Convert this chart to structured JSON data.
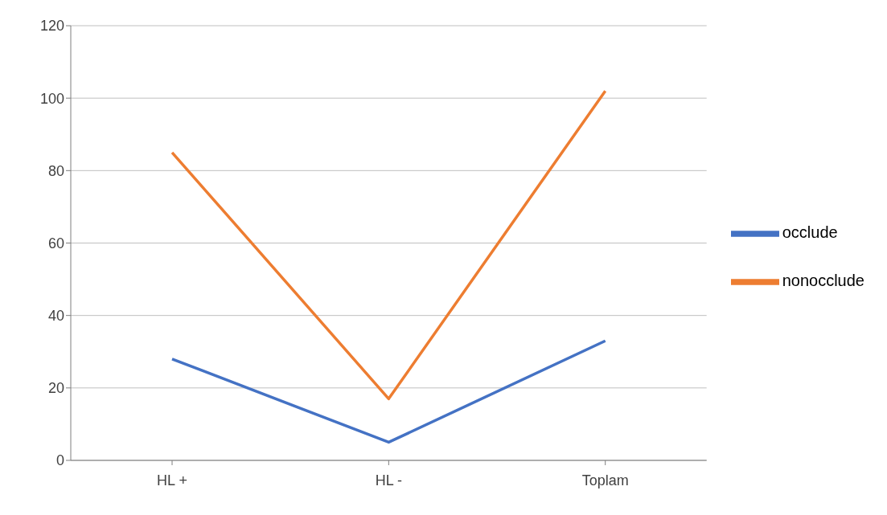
{
  "chart_data": {
    "type": "line",
    "categories": [
      "HL +",
      "HL -",
      "Toplam"
    ],
    "series": [
      {
        "name": "occlude",
        "color": "#4472c4",
        "values": [
          28,
          5,
          33
        ]
      },
      {
        "name": "nonocclude",
        "color": "#ed7d31",
        "values": [
          85,
          17,
          102
        ]
      }
    ],
    "ylim": [
      0,
      120
    ],
    "yticks": [
      0,
      20,
      40,
      60,
      80,
      100,
      120
    ],
    "grid": "y",
    "legend": "right"
  }
}
